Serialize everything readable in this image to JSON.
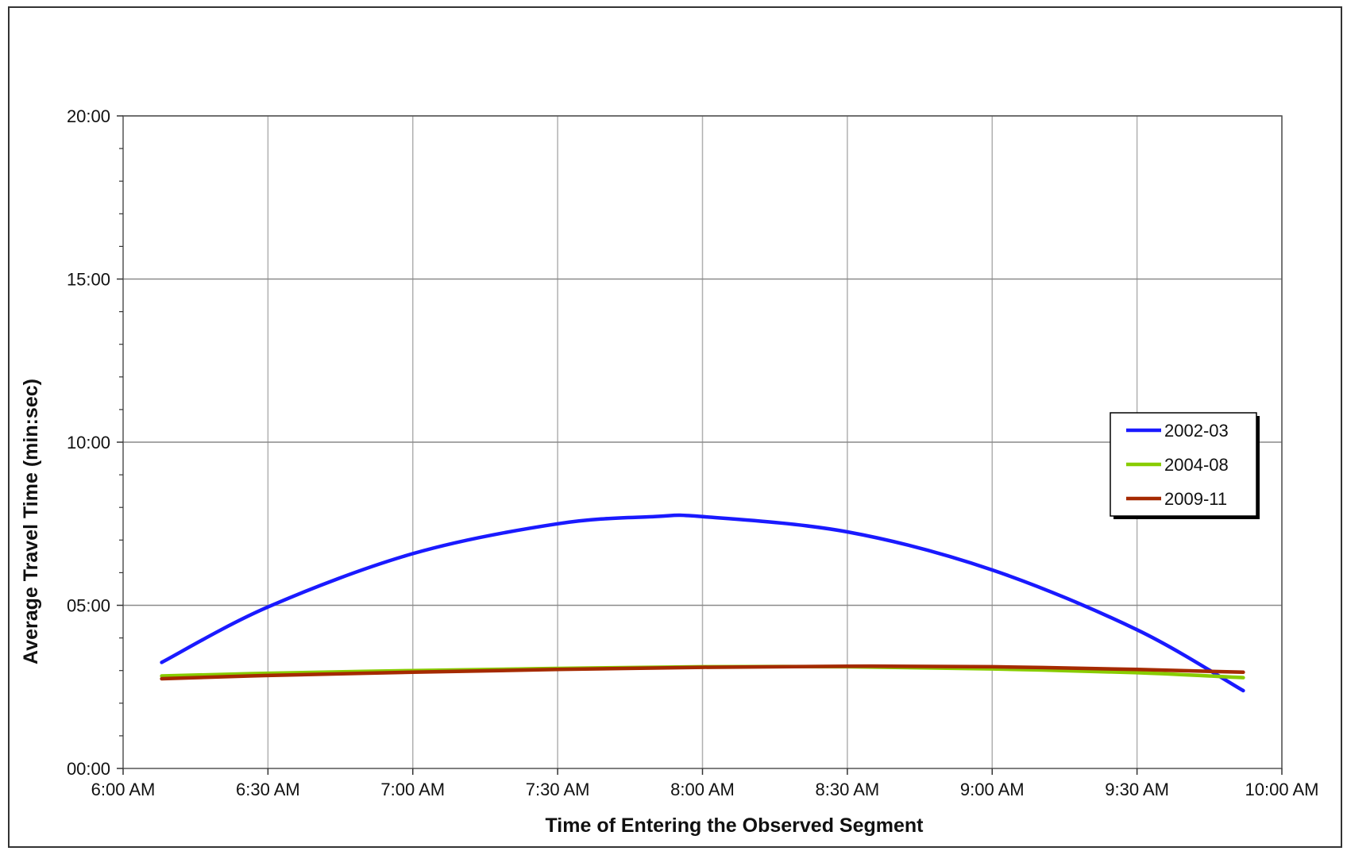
{
  "chart_data": {
    "type": "line",
    "title": "",
    "xlabel": "Time of Entering the Observed Segment",
    "ylabel": "Average Travel Time (min:sec)",
    "x_ticks": [
      "6:00 AM",
      "6:30 AM",
      "7:00 AM",
      "7:30 AM",
      "8:00 AM",
      "8:30 AM",
      "9:00 AM",
      "9:30 AM",
      "10:00 AM"
    ],
    "y_ticks": [
      "00:00",
      "05:00",
      "10:00",
      "15:00",
      "20:00"
    ],
    "xlim": [
      "6:00 AM",
      "10:00 AM"
    ],
    "ylim": [
      "00:00",
      "20:00"
    ],
    "grid": true,
    "legend_position": "right",
    "x_unit": "time of day",
    "y_unit": "min:sec",
    "series": [
      {
        "name": "2002-03",
        "color": "#1a1aff",
        "x": [
          "6:08 AM",
          "6:30 AM",
          "7:00 AM",
          "7:30 AM",
          "7:50 AM",
          "8:00 AM",
          "8:30 AM",
          "9:00 AM",
          "9:30 AM",
          "9:52 AM"
        ],
        "y": [
          "03:15",
          "04:57",
          "06:35",
          "07:30",
          "07:43",
          "07:43",
          "07:15",
          "06:05",
          "04:15",
          "02:23"
        ]
      },
      {
        "name": "2004-08",
        "color": "#88cc00",
        "x": [
          "6:08 AM",
          "6:30 AM",
          "7:00 AM",
          "7:30 AM",
          "8:00 AM",
          "8:30 AM",
          "9:00 AM",
          "9:30 AM",
          "9:52 AM"
        ],
        "y": [
          "02:50",
          "02:55",
          "03:00",
          "03:04",
          "03:07",
          "03:07",
          "03:03",
          "02:56",
          "02:47"
        ]
      },
      {
        "name": "2009-11",
        "color": "#a52a00",
        "x": [
          "6:08 AM",
          "6:30 AM",
          "7:00 AM",
          "7:30 AM",
          "8:00 AM",
          "8:30 AM",
          "9:00 AM",
          "9:30 AM",
          "9:52 AM"
        ],
        "y": [
          "02:45",
          "02:51",
          "02:57",
          "03:02",
          "03:06",
          "03:08",
          "03:07",
          "03:02",
          "02:57"
        ]
      }
    ]
  }
}
